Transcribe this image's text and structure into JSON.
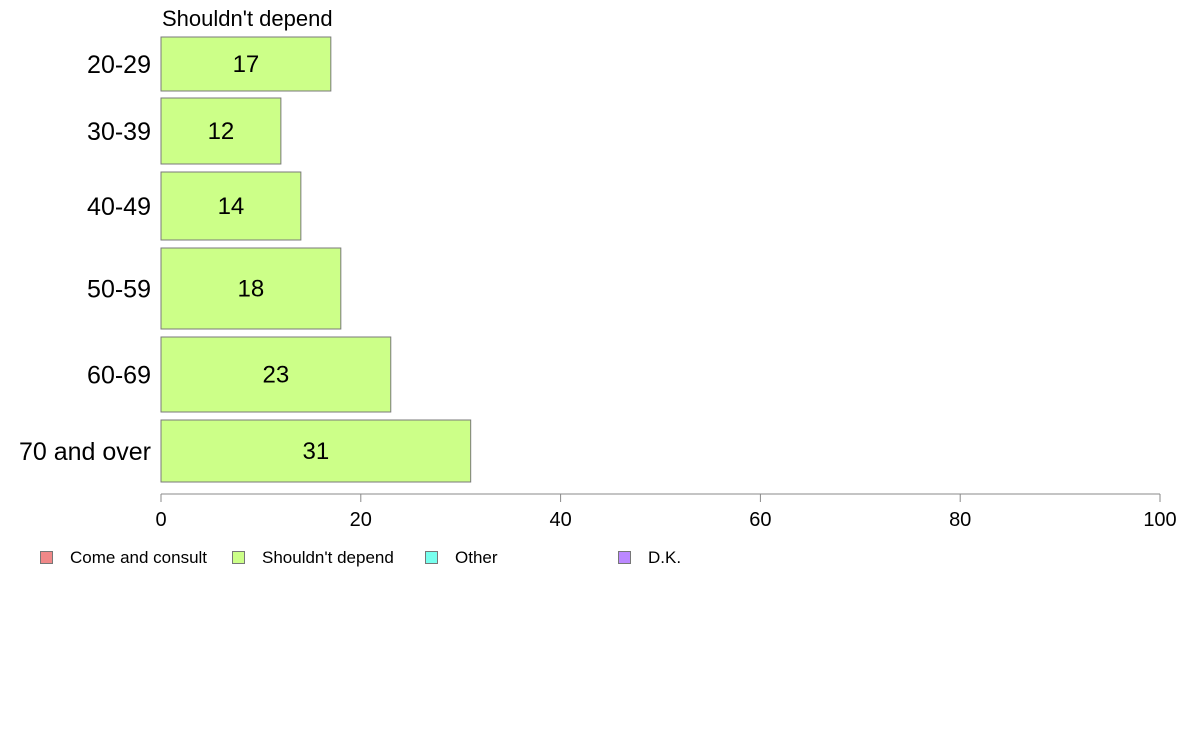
{
  "chart_data": {
    "type": "bar",
    "orientation": "horizontal",
    "title": "Shouldn't depend",
    "categories": [
      "20-29",
      "30-39",
      "40-49",
      "50-59",
      "60-69",
      "70 and over"
    ],
    "series": [
      {
        "name": "Shouldn't depend",
        "color": "#ccff88",
        "values": [
          17,
          12,
          14,
          18,
          23,
          31
        ]
      }
    ],
    "xlim": [
      0,
      100
    ],
    "xticks": [
      0,
      20,
      40,
      60,
      80,
      100
    ],
    "grid": false,
    "legend": {
      "placement": "bottom-left",
      "items": [
        {
          "label": "Come and consult",
          "color": "#f08888"
        },
        {
          "label": "Shouldn't depend",
          "color": "#ccff88"
        },
        {
          "label": "Other",
          "color": "#77ffee"
        },
        {
          "label": "D.K.",
          "color": "#bb88ff"
        }
      ]
    }
  }
}
